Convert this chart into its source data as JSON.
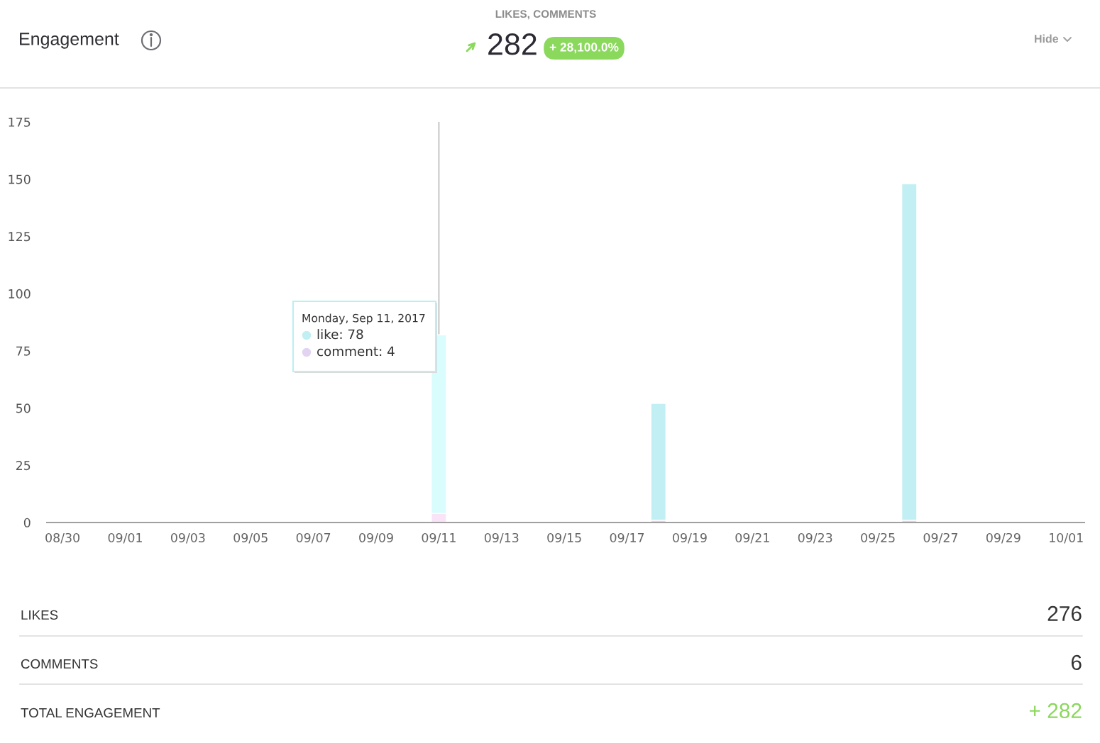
{
  "chart_data": {
    "type": "bar",
    "title": "Engagement",
    "subtitle": "LIKES, COMMENTS",
    "stacked": true,
    "x": [
      "2017-09-11",
      "2017-09-18",
      "2017-09-26"
    ],
    "series": [
      {
        "color": "#e3d3f3",
        "colors": [
          "#f9e4f7",
          "#e3d3f3",
          "#e3d3f3"
        ],
        "values": [
          4,
          1,
          1
        ]
      },
      {
        "color": "#c1eff3",
        "colors": [
          "#d9fcfc",
          "#c1eff3",
          "#c1eff3"
        ],
        "values": [
          78,
          51,
          147
        ]
      }
    ],
    "xlim": [
      "2017-08-29T12:00",
      "2017-10-01T14:00"
    ],
    "xticks": [
      {
        "value": "2017-08-30",
        "label": "08/30"
      },
      {
        "value": "2017-09-01",
        "label": "09/01"
      },
      {
        "value": "2017-09-03",
        "label": "09/03"
      },
      {
        "value": "2017-09-05",
        "label": "09/05"
      },
      {
        "value": "2017-09-07",
        "label": "09/07"
      },
      {
        "value": "2017-09-09",
        "label": "09/09"
      },
      {
        "value": "2017-09-11",
        "label": "09/11"
      },
      {
        "value": "2017-09-13",
        "label": "09/13"
      },
      {
        "value": "2017-09-15",
        "label": "09/15"
      },
      {
        "value": "2017-09-17",
        "label": "09/17"
      },
      {
        "value": "2017-09-19",
        "label": "09/19"
      },
      {
        "value": "2017-09-21",
        "label": "09/21"
      },
      {
        "value": "2017-09-23",
        "label": "09/23"
      },
      {
        "value": "2017-09-25",
        "label": "09/25"
      },
      {
        "value": "2017-09-27",
        "label": "09/27"
      },
      {
        "value": "2017-09-29",
        "label": "09/29"
      },
      {
        "value": "2017-10-01",
        "label": "10/01"
      }
    ],
    "ylim": [
      0,
      175
    ],
    "yticks": [
      0,
      25,
      50,
      75,
      100,
      125,
      150,
      175
    ],
    "ref_lines": [
      {
        "axis": "x",
        "value": "2017-09-11",
        "color": "#c8c8c8"
      }
    ],
    "annotations": [
      "282",
      "+ 28,100.0%",
      "Hide",
      "Monday, Sep 11, 2017",
      "like: 78",
      "comment: 4",
      "LIKES",
      "276",
      "COMMENTS",
      "6",
      "TOTAL ENGAGEMENT",
      "+ 282"
    ]
  }
}
